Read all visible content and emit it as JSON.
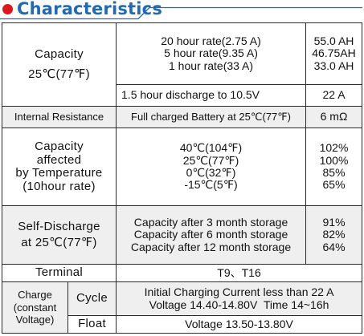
{
  "header": {
    "title": "Characteristics"
  },
  "colors": {
    "accent_blue": "#1f69b7",
    "dot_red": "#e0161c",
    "row_gray": "#efefef"
  },
  "capacity": {
    "label_line1": "Capacity",
    "label_line2": "25℃(77℉)",
    "rates": [
      "20 hour rate(2.75 A)",
      "5 hour rate(9.35 A)",
      "1 hour rate(33 A)"
    ],
    "values": [
      "55.0 AH",
      "46.75AH",
      "33.0 AH"
    ],
    "discharge_label": "1.5 hour discharge to 10.5V",
    "discharge_value": "22 A"
  },
  "internal_resistance": {
    "label": "Internal Resistance",
    "condition": "Full charged Battery at 25℃(77℉)",
    "value": "6 mΩ"
  },
  "temperature": {
    "label_lines": [
      "Capacity",
      "affected",
      "by Temperature",
      "(10hour rate)"
    ],
    "temps": [
      "40℃(104℉)",
      "25℃(77℉)",
      "0℃(32℉)",
      "-15℃(5℉)"
    ],
    "values": [
      "102%",
      "100%",
      "85%",
      "65%"
    ]
  },
  "self_discharge": {
    "label_line1": "Self-Discharge",
    "label_line2": "at 25℃(77℉)",
    "conditions": [
      "Capacity after 3 month storage",
      "Capacity after 6 month storage",
      "Capacity after 12 month storage"
    ],
    "values": [
      "91%",
      "82%",
      "64%"
    ]
  },
  "terminal": {
    "label": "Terminal",
    "value": "T9、T16"
  },
  "charge": {
    "label_lines": [
      "Charge",
      "(constant",
      "Voltage)"
    ],
    "cycle_label": "Cycle",
    "cycle_line1": "Initial Charging Current less than 22 A",
    "cycle_line2": "Voltage 14.40-14.80V  Time 14~16h",
    "float_label": "Float",
    "float_value": "Voltage 13.50-13.80V"
  }
}
